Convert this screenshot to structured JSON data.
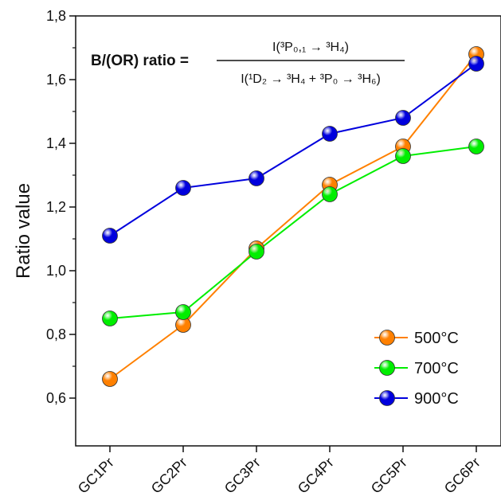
{
  "chart_data": {
    "type": "line",
    "categories": [
      "GC1Pr",
      "GC2Pr",
      "GC3Pr",
      "GC4Pr",
      "GC5Pr",
      "GC6Pr"
    ],
    "series": [
      {
        "name": "500°C",
        "values": [
          0.66,
          0.83,
          1.07,
          1.27,
          1.39,
          1.68
        ],
        "color": "#ff8000"
      },
      {
        "name": "700°C",
        "values": [
          0.85,
          0.87,
          1.06,
          1.24,
          1.36,
          1.39
        ],
        "color": "#00ee00"
      },
      {
        "name": "900°C",
        "values": [
          1.11,
          1.26,
          1.29,
          1.43,
          1.48,
          1.65
        ],
        "color": "#0000dd"
      }
    ],
    "ylabel": "Ratio value",
    "xlabel": "",
    "ylim": [
      0.5,
      1.8
    ],
    "yticks": [
      "0,6",
      "0,8",
      "1,0",
      "1,2",
      "1,4",
      "1,6",
      "1,8"
    ],
    "ytick_values": [
      0.6,
      0.8,
      1.0,
      1.2,
      1.4,
      1.6,
      1.8
    ],
    "legend_position": "bottom-right",
    "grid": false,
    "annotation": {
      "lhs": "B/(OR) ratio =",
      "numerator": "I(³P₀,₁ → ³H₄)",
      "denominator": "I(¹D₂ → ³H₄ + ³P₀ → ³H₆)"
    }
  }
}
